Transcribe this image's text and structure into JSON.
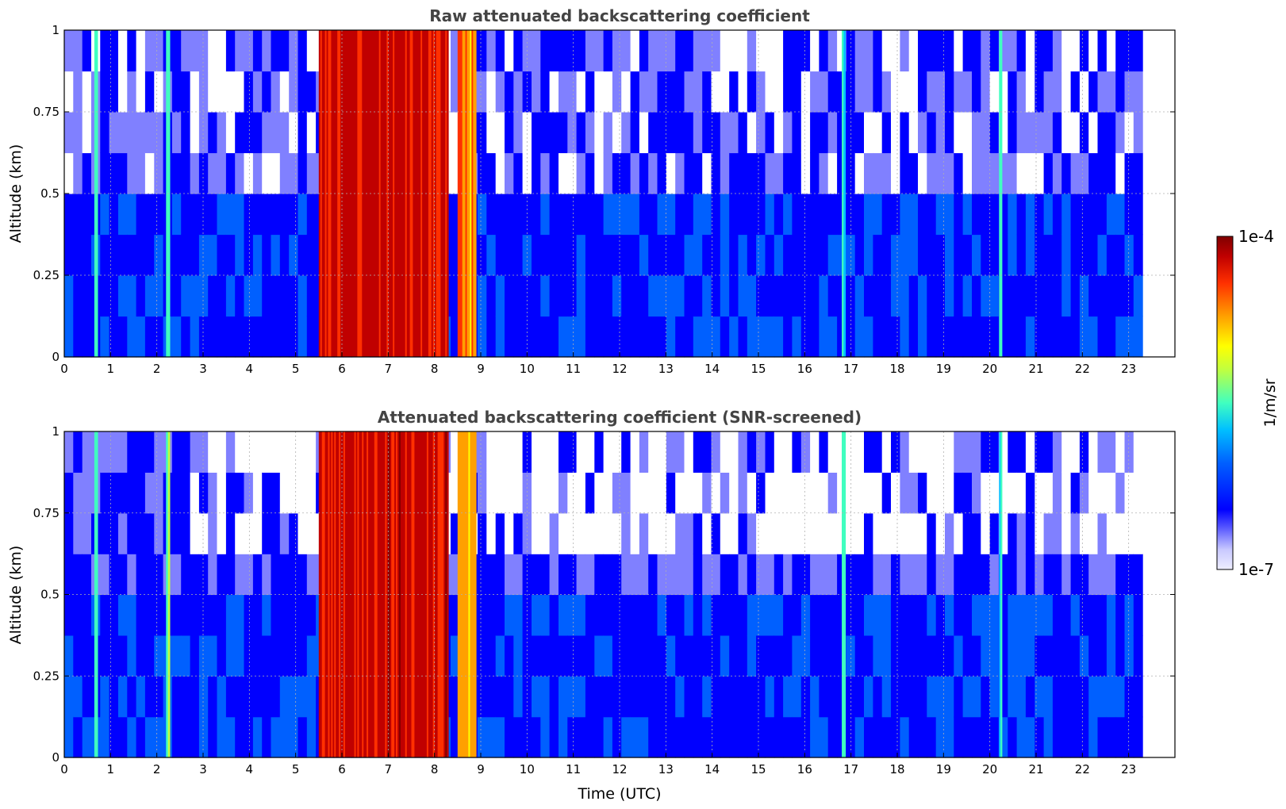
{
  "chart_data": [
    {
      "type": "heatmap",
      "title": "Raw attenuated backscattering coefficient",
      "xlabel": "",
      "ylabel": "Altitude (km)",
      "xlim": [
        0,
        24
      ],
      "ylim": [
        0,
        1
      ],
      "xticks": [
        "0",
        "1",
        "2",
        "3",
        "4",
        "5",
        "6",
        "7",
        "8",
        "9",
        "10",
        "11",
        "12",
        "13",
        "14",
        "15",
        "16",
        "17",
        "18",
        "19",
        "20",
        "21",
        "22",
        "23"
      ],
      "yticks": [
        "0",
        "0.25",
        "0.5",
        "0.75",
        "1"
      ],
      "grid": true,
      "data_extent_hours": [
        0,
        23.3
      ],
      "screened": false
    },
    {
      "type": "heatmap",
      "title": "Attenuated backscattering coefficient (SNR-screened)",
      "xlabel": "Time (UTC)",
      "ylabel": "Altitude (km)",
      "xlim": [
        0,
        24
      ],
      "ylim": [
        0,
        1
      ],
      "xticks": [
        "0",
        "1",
        "2",
        "3",
        "4",
        "5",
        "6",
        "7",
        "8",
        "9",
        "10",
        "11",
        "12",
        "13",
        "14",
        "15",
        "16",
        "17",
        "18",
        "19",
        "20",
        "21",
        "22",
        "23"
      ],
      "yticks": [
        "0",
        "0.25",
        "0.5",
        "0.75",
        "1"
      ],
      "grid": true,
      "data_extent_hours": [
        0,
        23.3
      ],
      "screened": true
    }
  ],
  "colorbar": {
    "label": "1/m/sr",
    "max_label": "1e-4",
    "min_label": "1e-7",
    "scale": "log",
    "colormap": "jet",
    "colors": [
      "#eeeeff",
      "#c8c8ff",
      "#8080ff",
      "#0000ff",
      "#0060ff",
      "#00c0ff",
      "#40ffc0",
      "#c0ff40",
      "#ffff00",
      "#ffa000",
      "#ff3000",
      "#c00000",
      "#800000"
    ]
  },
  "features": [
    {
      "name": "dense cloud",
      "start_h": 5.5,
      "end_h": 8.3,
      "level": 0.9
    },
    {
      "name": "cloud",
      "start_h": 8.5,
      "end_h": 8.9,
      "level": 0.75
    },
    {
      "name": "streak",
      "start_h": 0.65,
      "end_h": 0.72,
      "level": 0.55
    },
    {
      "name": "streak",
      "start_h": 2.2,
      "end_h": 2.28,
      "level": 0.55
    },
    {
      "name": "streak",
      "start_h": 16.8,
      "end_h": 16.88,
      "level": 0.5
    },
    {
      "name": "streak",
      "start_h": 20.2,
      "end_h": 20.26,
      "level": 0.45
    }
  ]
}
